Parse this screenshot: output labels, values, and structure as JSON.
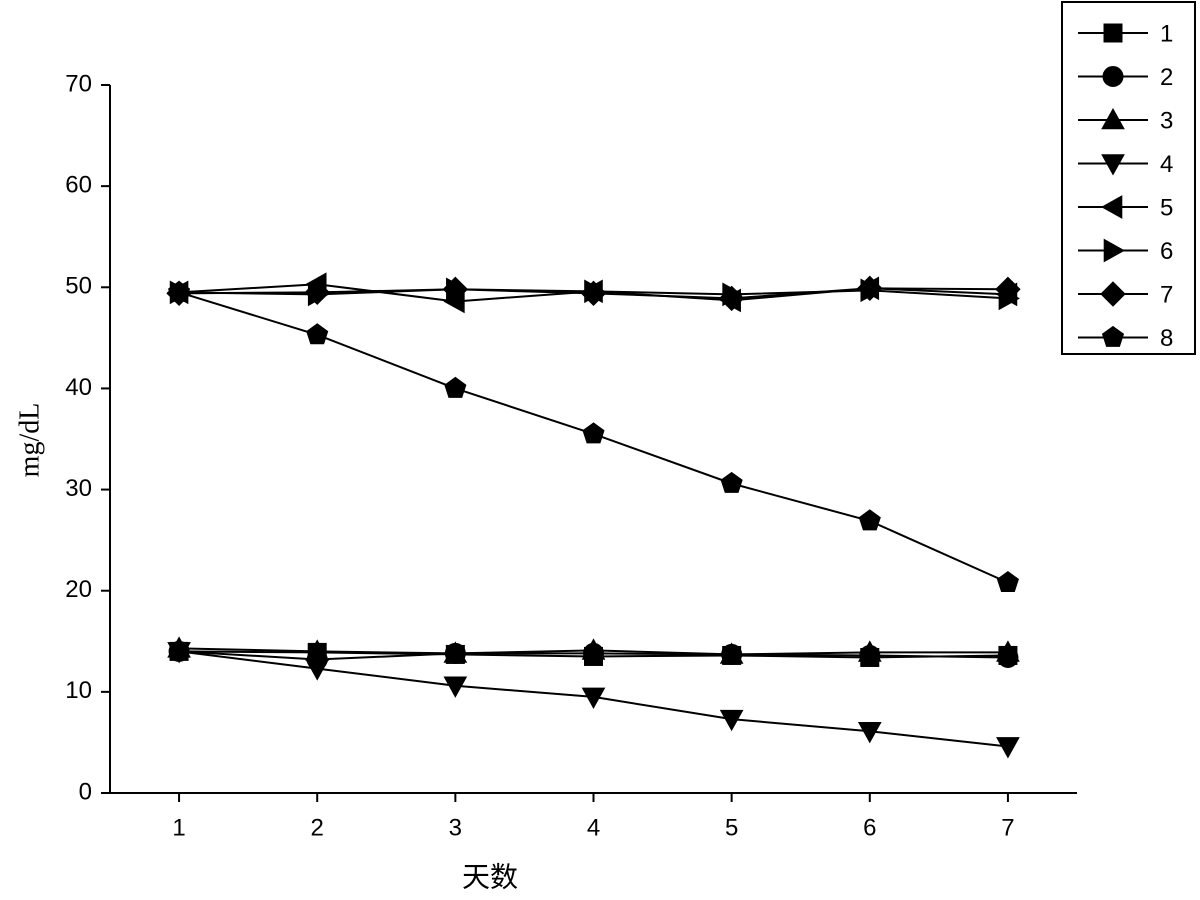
{
  "chart_data": {
    "type": "line",
    "x_label": "天数",
    "y_label": "mg/dL",
    "x": [
      1,
      2,
      3,
      4,
      5,
      6,
      7
    ],
    "xlim": [
      0.5,
      7.5
    ],
    "xticks": [
      1,
      2,
      3,
      4,
      5,
      6,
      7
    ],
    "ylim": [
      0,
      70
    ],
    "yticks": [
      0,
      10,
      20,
      30,
      40,
      50,
      60,
      70
    ],
    "legend_position": "top-right",
    "series": [
      {
        "name": "1",
        "color": "#000000",
        "marker": "square",
        "values": [
          14.0,
          13.9,
          13.7,
          13.5,
          13.6,
          13.4,
          13.6
        ]
      },
      {
        "name": "2",
        "color": "#000000",
        "marker": "circle",
        "values": [
          14.0,
          13.2,
          13.8,
          13.8,
          13.7,
          13.6,
          13.4
        ]
      },
      {
        "name": "3",
        "color": "#000000",
        "marker": "triangle-up",
        "values": [
          14.3,
          14.0,
          13.8,
          14.1,
          13.7,
          13.9,
          13.9
        ]
      },
      {
        "name": "4",
        "color": "#000000",
        "marker": "triangle-down",
        "values": [
          14.0,
          12.3,
          10.6,
          9.5,
          7.3,
          6.1,
          4.6
        ]
      },
      {
        "name": "5",
        "color": "#000000",
        "marker": "triangle-left",
        "values": [
          49.5,
          50.3,
          48.6,
          49.6,
          48.7,
          49.9,
          49.3
        ]
      },
      {
        "name": "6",
        "color": "#000000",
        "marker": "triangle-right",
        "values": [
          49.5,
          49.3,
          49.8,
          49.6,
          49.3,
          49.7,
          48.9
        ]
      },
      {
        "name": "7",
        "color": "#000000",
        "marker": "diamond",
        "values": [
          49.4,
          49.5,
          49.8,
          49.4,
          48.9,
          49.9,
          49.8
        ]
      },
      {
        "name": "8",
        "color": "#000000",
        "marker": "pentagon",
        "values": [
          49.5,
          45.3,
          40.0,
          35.5,
          30.6,
          26.9,
          20.8
        ]
      }
    ]
  }
}
